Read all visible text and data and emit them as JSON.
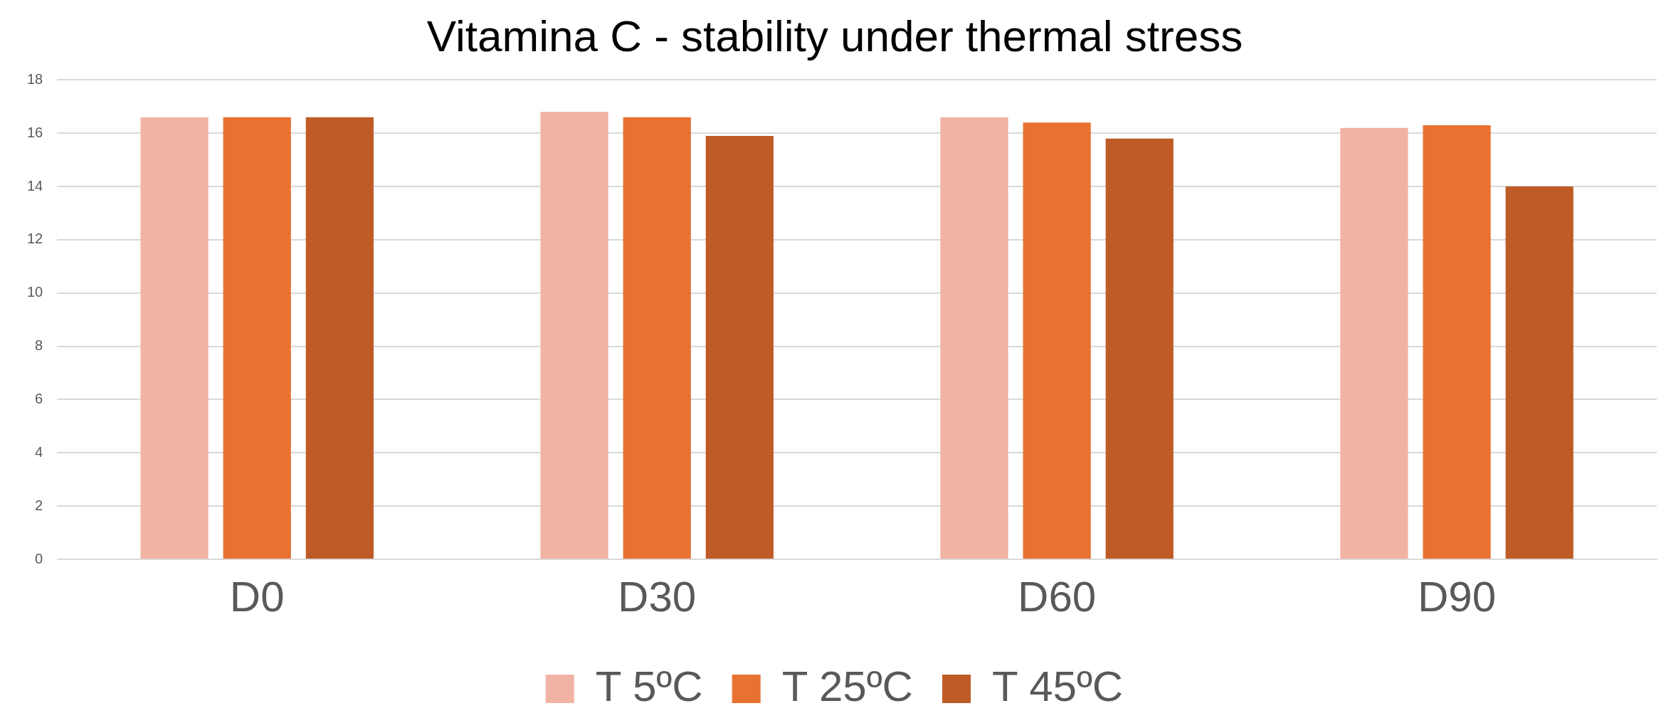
{
  "chart_data": {
    "type": "bar",
    "title": "Vitamina C - stability under thermal stress",
    "categories": [
      "D0",
      "D30",
      "D60",
      "D90"
    ],
    "series": [
      {
        "name": "T 5ºC",
        "color": "#f1b3a3",
        "values": [
          16.6,
          16.8,
          16.6,
          16.2
        ]
      },
      {
        "name": "T 25ºC",
        "color": "#e87232",
        "values": [
          16.6,
          16.6,
          16.4,
          16.3
        ]
      },
      {
        "name": "T 45ºC",
        "color": "#bf5b27",
        "values": [
          16.6,
          15.9,
          15.8,
          14.0
        ]
      }
    ],
    "ylim": [
      0,
      18
    ],
    "yticks": [
      0,
      2,
      4,
      6,
      8,
      10,
      12,
      14,
      16,
      18
    ],
    "grid": "y",
    "legend": "bottom"
  }
}
